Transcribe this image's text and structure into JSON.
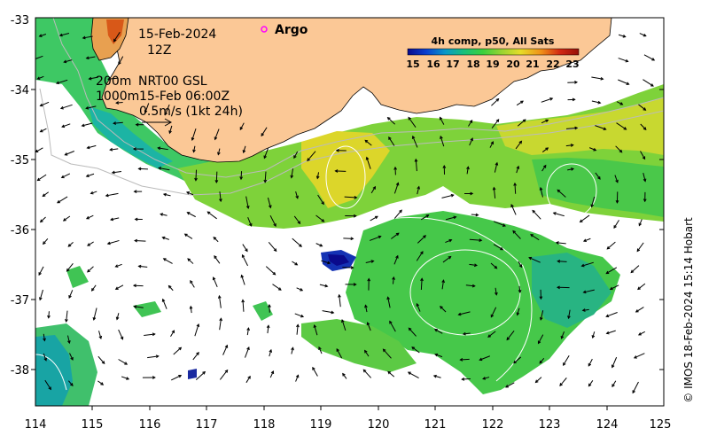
{
  "map": {
    "x_ticks": [
      "114",
      "115",
      "116",
      "117",
      "118",
      "119",
      "120",
      "121",
      "122",
      "123",
      "124",
      "125"
    ],
    "y_ticks": [
      "-33",
      "-34",
      "-35",
      "-36",
      "-37",
      "-38"
    ],
    "lon_range": [
      114,
      125
    ],
    "lat_range": [
      -38.5,
      -33
    ]
  },
  "annotations": {
    "date": "15-Feb-2024",
    "hour": "12Z",
    "contour_200": "200m",
    "contour_1000": "1000m",
    "source": "NRT00 GSL",
    "source_time": "15-Feb 06:00Z",
    "scale": "0.5m/s (1kt 24h)"
  },
  "legend": {
    "argo_label": "Argo",
    "argo_color": "#ff00ff"
  },
  "colorbar": {
    "title": "4h comp, p50, All Sats",
    "ticks": [
      "15",
      "16",
      "17",
      "18",
      "19",
      "20",
      "21",
      "22",
      "23"
    ],
    "colors": [
      "#0a0a8c",
      "#0a40d0",
      "#0a98c8",
      "#18c07a",
      "#3cd03c",
      "#9ad432",
      "#e6dc28",
      "#f09018",
      "#d22812",
      "#961008"
    ]
  },
  "credit": "© IMOS 18-Feb-2024 15:14 Hobart",
  "colors": {
    "land": "#fbc896",
    "background": "#ffffff",
    "contour": "#bbbbbb",
    "vector": "#000000"
  }
}
